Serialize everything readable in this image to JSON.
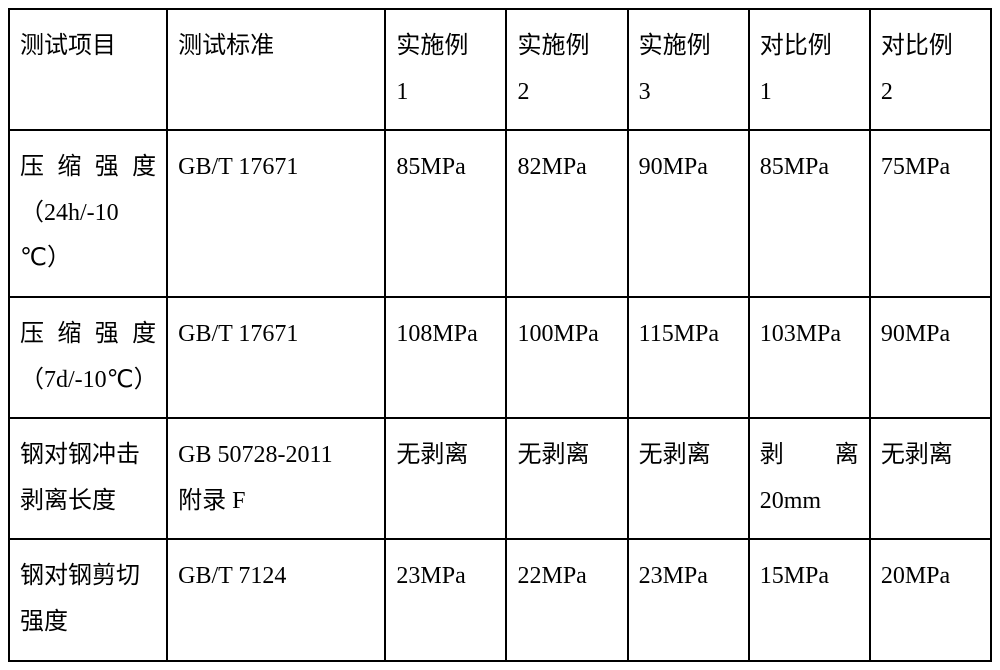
{
  "table": {
    "headers": {
      "col1": "测试项目",
      "col2": "测试标准",
      "col3_line1": "实施例",
      "col3_line2": "1",
      "col4_line1": "实施例",
      "col4_line2": "2",
      "col5_line1": "实施例",
      "col5_line2": "3",
      "col6_line1": "对比例",
      "col6_line2": "1",
      "col7_line1": "对比例",
      "col7_line2": "2"
    },
    "row1": {
      "c1_line1": "压缩强度",
      "c1_line2": "（24h/-10",
      "c1_line3": "℃）",
      "c2": "GB/T 17671",
      "c3": "85MPa",
      "c4": "82MPa",
      "c5": "90MPa",
      "c6": "85MPa",
      "c7": "75MPa"
    },
    "row2": {
      "c1_line1": "压缩强度",
      "c1_line2": "（7d/-10℃）",
      "c2": "GB/T 17671",
      "c3": "108MPa",
      "c4": "100MPa",
      "c5": "115MPa",
      "c6": "103MPa",
      "c7": "90MPa"
    },
    "row3": {
      "c1_line1": "钢对钢冲击",
      "c1_line2": "剥离长度",
      "c2_line1": "GB 50728-2011",
      "c2_line2": "附录 F",
      "c3": "无剥离",
      "c4": "无剥离",
      "c5": "无剥离",
      "c6_line1": "剥　离",
      "c6_line2": "20mm",
      "c7": "无剥离"
    },
    "row4": {
      "c1_line1": "钢对钢剪切",
      "c1_line2": "强度",
      "c2": "GB/T 7124",
      "c3": "23MPa",
      "c4": "22MPa",
      "c5": "23MPa",
      "c6": "15MPa",
      "c7": "20MPa"
    }
  },
  "styling": {
    "border_color": "#000000",
    "border_width": 2,
    "background_color": "#ffffff",
    "text_color": "#000000",
    "font_size": 24,
    "font_family": "SimSun",
    "cell_padding": 14,
    "line_height": 1.9
  }
}
